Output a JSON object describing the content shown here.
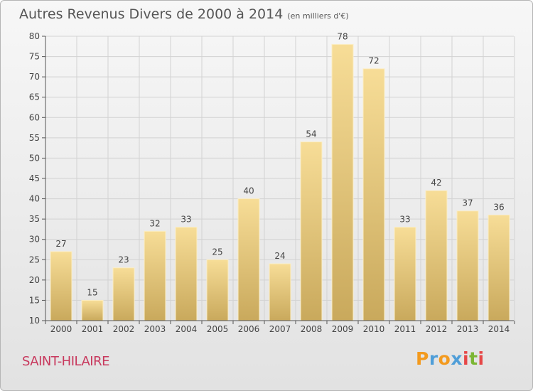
{
  "header": {
    "title": "Autres Revenus Divers de 2000 à 2014",
    "subtitle": "(en milliers d'€)"
  },
  "footer": {
    "location": "SAINT-HILAIRE",
    "brand": {
      "letters": [
        "P",
        "r",
        "o",
        "x",
        "i",
        "t",
        "i"
      ],
      "colors": [
        "#f39a1e",
        "#4f9ed8",
        "#f39a1e",
        "#4f9ed8",
        "#e64747",
        "#7cb634",
        "#e64747"
      ]
    }
  },
  "chart_data": {
    "type": "bar",
    "categories": [
      "2000",
      "2001",
      "2002",
      "2003",
      "2004",
      "2005",
      "2006",
      "2007",
      "2008",
      "2009",
      "2010",
      "2011",
      "2012",
      "2013",
      "2014"
    ],
    "values": [
      27,
      15,
      23,
      32,
      33,
      25,
      40,
      24,
      54,
      78,
      72,
      33,
      42,
      37,
      36
    ],
    "data_labels": [
      "27",
      "15",
      "23",
      "32",
      "33",
      "25",
      "40",
      "24",
      "54",
      "78",
      "72",
      "33",
      "42",
      "37",
      "36"
    ],
    "ylim": [
      10,
      80
    ],
    "yticks": [
      10,
      15,
      20,
      25,
      30,
      35,
      40,
      45,
      50,
      55,
      60,
      65,
      70,
      75,
      80
    ],
    "grid": true,
    "colors": {
      "bar_light": "#f7dd97",
      "bar_dark": "#c9a95c",
      "grid": "#d2d2d2",
      "axis": "#555555"
    }
  }
}
